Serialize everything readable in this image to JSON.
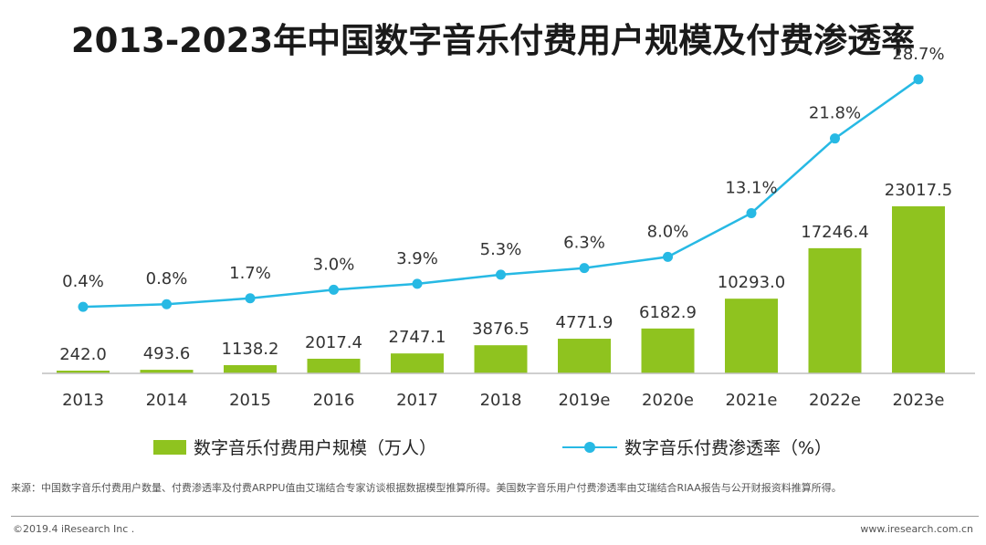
{
  "title": "2013-2023年中国数字音乐付费用户规模及付费渗透率",
  "chart_data": {
    "type": "bar+line",
    "categories": [
      "2013",
      "2014",
      "2015",
      "2016",
      "2017",
      "2018",
      "2019e",
      "2020e",
      "2021e",
      "2022e",
      "2023e"
    ],
    "series": [
      {
        "name": "数字音乐付费用户规模（万人）",
        "type": "bar",
        "values": [
          242.0,
          493.6,
          1138.2,
          2017.4,
          2747.1,
          3876.5,
          4771.9,
          6182.9,
          10293.0,
          17246.4,
          23017.5
        ],
        "labels": [
          "242.0",
          "493.6",
          "1138.2",
          "2017.4",
          "2747.1",
          "3876.5",
          "4771.9",
          "6182.9",
          "10293.0",
          "17246.4",
          "23017.5"
        ],
        "color": "#8fc31f"
      },
      {
        "name": "数字音乐付费渗透率（%）",
        "type": "line",
        "values": [
          0.4,
          0.8,
          1.7,
          3.0,
          3.9,
          5.3,
          6.3,
          8.0,
          13.1,
          21.8,
          28.7
        ],
        "labels": [
          "0.4%",
          "0.8%",
          "1.7%",
          "3.0%",
          "3.9%",
          "5.3%",
          "6.3%",
          "8.0%",
          "13.1%",
          "21.8%",
          "28.7%"
        ],
        "color": "#27b9e4"
      }
    ],
    "legend": {
      "bar": "数字音乐付费用户规模（万人）",
      "line": "数字音乐付费渗透率（%）",
      "position": "bottom"
    }
  },
  "footer": {
    "source": "来源：中国数字音乐付费用户数量、付费渗透率及付费ARPPU值由艾瑞结合专家访谈根据数据模型推算所得。美国数字音乐用户付费渗透率由艾瑞结合RIAA报告与公开财报资料推算所得。",
    "copyright": "©2019.4 iResearch Inc .",
    "website": "www.iresearch.com.cn"
  }
}
